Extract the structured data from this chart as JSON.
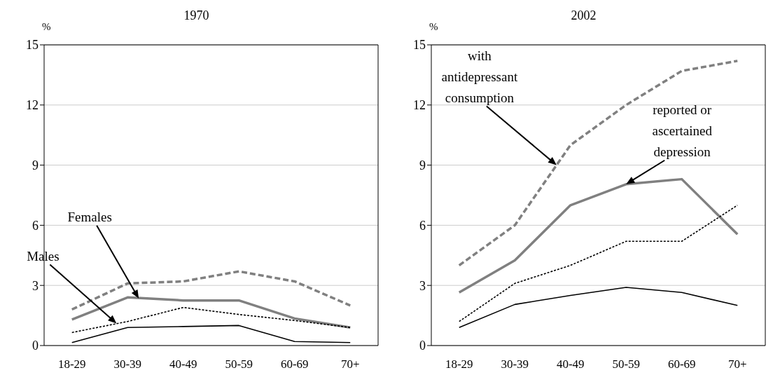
{
  "chart_data": [
    {
      "type": "line",
      "title": "1970",
      "ylabel": "%",
      "categories": [
        "18-29",
        "30-39",
        "40-49",
        "50-59",
        "60-69",
        "70+"
      ],
      "series": [
        {
          "color": "#808080",
          "line_style": "dashed",
          "values": [
            1.8,
            3.1,
            3.2,
            3.7,
            3.2,
            2.0
          ]
        },
        {
          "color": "#808080",
          "line_style": "solid",
          "values": [
            1.3,
            2.4,
            2.25,
            2.25,
            1.35,
            0.9
          ]
        },
        {
          "color": "#000000",
          "line_style": "dotted",
          "values": [
            0.65,
            1.2,
            1.9,
            1.55,
            1.25,
            0.9
          ]
        },
        {
          "color": "#000000",
          "line_style": "solid",
          "values": [
            0.15,
            0.9,
            0.95,
            1.0,
            0.2,
            0.15
          ]
        }
      ],
      "ylim": [
        0,
        15
      ],
      "yticks": [
        0,
        3,
        6,
        9,
        12,
        15
      ],
      "grid": "y",
      "legend": false,
      "marker": "none",
      "annotations": [
        "Females",
        "Males"
      ]
    },
    {
      "type": "line",
      "title": "2002",
      "ylabel": "%",
      "categories": [
        "18-29",
        "30-39",
        "40-49",
        "50-59",
        "60-69",
        "70+"
      ],
      "series": [
        {
          "color": "#808080",
          "line_style": "dashed",
          "values": [
            4.0,
            6.0,
            10.0,
            12.0,
            13.7,
            14.2
          ]
        },
        {
          "color": "#808080",
          "line_style": "solid",
          "values": [
            2.65,
            4.25,
            7.0,
            8.05,
            8.3,
            5.55
          ]
        },
        {
          "color": "#000000",
          "line_style": "dotted",
          "values": [
            1.2,
            3.1,
            4.0,
            5.2,
            5.2,
            7.0
          ]
        },
        {
          "color": "#000000",
          "line_style": "solid",
          "values": [
            0.9,
            2.05,
            2.5,
            2.9,
            2.65,
            2.0
          ]
        }
      ],
      "ylim": [
        0,
        15
      ],
      "yticks": [
        0,
        3,
        6,
        9,
        12,
        15
      ],
      "grid": "y",
      "legend": false,
      "marker": "none",
      "annotations": [
        "with antidepressant consumption",
        {
          "text": "reported or ascertained depression",
          "x": "50-59",
          "y": 8.05
        }
      ]
    }
  ]
}
